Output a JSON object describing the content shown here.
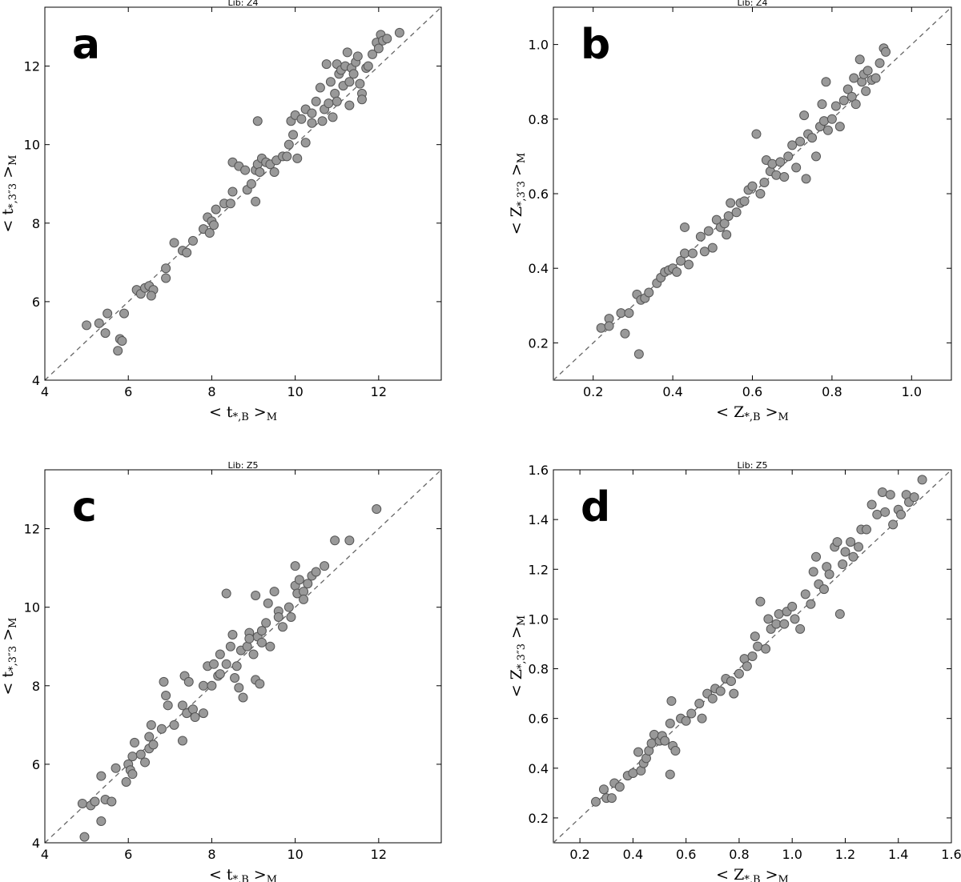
{
  "colors": {
    "marker_fill": "#999999",
    "marker_edge": "#555555",
    "diagonal": "#666666"
  },
  "chart_data": [
    {
      "id": "a",
      "type": "scatter",
      "panel_label": "a",
      "title": "Lib: Z4",
      "xlabel": "< t*,B >M",
      "ylabel": "< t*,3″3 >M",
      "xlim": [
        4,
        13.5
      ],
      "ylim": [
        4,
        13.5
      ],
      "xticks": [
        4,
        6,
        8,
        10,
        12
      ],
      "yticks": [
        4,
        6,
        8,
        10,
        12
      ],
      "tick_format": 0,
      "identity_line": true,
      "points": [
        [
          5.0,
          5.4
        ],
        [
          5.3,
          5.45
        ],
        [
          5.5,
          5.7
        ],
        [
          5.45,
          5.2
        ],
        [
          5.8,
          5.05
        ],
        [
          5.85,
          5.0
        ],
        [
          5.75,
          4.75
        ],
        [
          5.9,
          5.7
        ],
        [
          6.2,
          6.3
        ],
        [
          6.3,
          6.2
        ],
        [
          6.4,
          6.35
        ],
        [
          6.5,
          6.4
        ],
        [
          6.6,
          6.3
        ],
        [
          6.55,
          6.15
        ],
        [
          6.9,
          6.6
        ],
        [
          6.9,
          6.85
        ],
        [
          7.1,
          7.5
        ],
        [
          7.3,
          7.3
        ],
        [
          7.4,
          7.25
        ],
        [
          7.55,
          7.55
        ],
        [
          7.8,
          7.85
        ],
        [
          7.9,
          8.15
        ],
        [
          8.0,
          8.05
        ],
        [
          7.95,
          7.75
        ],
        [
          8.05,
          7.95
        ],
        [
          8.1,
          8.35
        ],
        [
          8.3,
          8.5
        ],
        [
          8.45,
          8.5
        ],
        [
          8.5,
          8.8
        ],
        [
          8.5,
          9.55
        ],
        [
          8.65,
          9.45
        ],
        [
          8.8,
          9.35
        ],
        [
          8.85,
          8.85
        ],
        [
          8.95,
          9.0
        ],
        [
          9.05,
          8.55
        ],
        [
          9.05,
          9.35
        ],
        [
          9.1,
          9.5
        ],
        [
          9.1,
          10.6
        ],
        [
          9.15,
          9.3
        ],
        [
          9.2,
          9.65
        ],
        [
          9.3,
          9.55
        ],
        [
          9.4,
          9.5
        ],
        [
          9.5,
          9.3
        ],
        [
          9.55,
          9.6
        ],
        [
          9.7,
          9.7
        ],
        [
          9.8,
          9.7
        ],
        [
          9.85,
          10.0
        ],
        [
          9.9,
          10.6
        ],
        [
          10.0,
          10.75
        ],
        [
          9.95,
          10.25
        ],
        [
          10.05,
          9.65
        ],
        [
          10.15,
          10.65
        ],
        [
          10.25,
          10.9
        ],
        [
          10.25,
          10.05
        ],
        [
          10.4,
          10.8
        ],
        [
          10.5,
          11.1
        ],
        [
          10.6,
          11.45
        ],
        [
          10.65,
          10.6
        ],
        [
          10.7,
          10.9
        ],
        [
          10.75,
          12.05
        ],
        [
          10.85,
          11.6
        ],
        [
          10.9,
          10.7
        ],
        [
          10.95,
          11.3
        ],
        [
          11.0,
          12.05
        ],
        [
          11.05,
          11.8
        ],
        [
          11.1,
          11.9
        ],
        [
          11.15,
          11.5
        ],
        [
          11.2,
          12.0
        ],
        [
          11.25,
          12.35
        ],
        [
          11.3,
          11.0
        ],
        [
          11.35,
          11.95
        ],
        [
          11.45,
          12.1
        ],
        [
          11.5,
          12.25
        ],
        [
          11.55,
          11.55
        ],
        [
          11.6,
          11.3
        ],
        [
          11.6,
          11.15
        ],
        [
          11.7,
          11.95
        ],
        [
          11.75,
          12.0
        ],
        [
          11.85,
          12.3
        ],
        [
          11.95,
          12.6
        ],
        [
          12.0,
          12.45
        ],
        [
          12.05,
          12.8
        ],
        [
          12.1,
          12.65
        ],
        [
          12.2,
          12.7
        ],
        [
          12.5,
          12.85
        ],
        [
          11.3,
          11.6
        ],
        [
          11.0,
          11.1
        ],
        [
          10.4,
          10.55
        ],
        [
          10.8,
          11.05
        ],
        [
          11.4,
          11.8
        ]
      ]
    },
    {
      "id": "b",
      "type": "scatter",
      "panel_label": "b",
      "title": "Lib: Z4",
      "xlabel": "< Z*,B >M",
      "ylabel": "< Z*,3″3 >M",
      "xlim": [
        0.1,
        1.1
      ],
      "ylim": [
        0.1,
        1.1
      ],
      "xticks": [
        0.2,
        0.4,
        0.6,
        0.8,
        1.0
      ],
      "yticks": [
        0.2,
        0.4,
        0.6,
        0.8,
        1.0
      ],
      "tick_format": 1,
      "identity_line": true,
      "points": [
        [
          0.22,
          0.24
        ],
        [
          0.24,
          0.265
        ],
        [
          0.24,
          0.245
        ],
        [
          0.27,
          0.28
        ],
        [
          0.28,
          0.225
        ],
        [
          0.29,
          0.28
        ],
        [
          0.31,
          0.33
        ],
        [
          0.32,
          0.315
        ],
        [
          0.315,
          0.17
        ],
        [
          0.33,
          0.32
        ],
        [
          0.34,
          0.335
        ],
        [
          0.36,
          0.36
        ],
        [
          0.37,
          0.375
        ],
        [
          0.38,
          0.39
        ],
        [
          0.39,
          0.395
        ],
        [
          0.4,
          0.4
        ],
        [
          0.41,
          0.39
        ],
        [
          0.42,
          0.42
        ],
        [
          0.43,
          0.44
        ],
        [
          0.43,
          0.51
        ],
        [
          0.44,
          0.41
        ],
        [
          0.45,
          0.44
        ],
        [
          0.47,
          0.485
        ],
        [
          0.48,
          0.445
        ],
        [
          0.49,
          0.5
        ],
        [
          0.5,
          0.455
        ],
        [
          0.51,
          0.53
        ],
        [
          0.52,
          0.51
        ],
        [
          0.53,
          0.52
        ],
        [
          0.535,
          0.49
        ],
        [
          0.54,
          0.54
        ],
        [
          0.545,
          0.575
        ],
        [
          0.56,
          0.55
        ],
        [
          0.57,
          0.575
        ],
        [
          0.58,
          0.58
        ],
        [
          0.59,
          0.61
        ],
        [
          0.6,
          0.62
        ],
        [
          0.61,
          0.76
        ],
        [
          0.62,
          0.6
        ],
        [
          0.63,
          0.63
        ],
        [
          0.635,
          0.69
        ],
        [
          0.645,
          0.66
        ],
        [
          0.65,
          0.68
        ],
        [
          0.66,
          0.65
        ],
        [
          0.67,
          0.685
        ],
        [
          0.68,
          0.645
        ],
        [
          0.69,
          0.7
        ],
        [
          0.7,
          0.73
        ],
        [
          0.71,
          0.67
        ],
        [
          0.72,
          0.74
        ],
        [
          0.73,
          0.81
        ],
        [
          0.735,
          0.64
        ],
        [
          0.74,
          0.76
        ],
        [
          0.75,
          0.75
        ],
        [
          0.76,
          0.7
        ],
        [
          0.77,
          0.78
        ],
        [
          0.775,
          0.84
        ],
        [
          0.78,
          0.795
        ],
        [
          0.785,
          0.9
        ],
        [
          0.79,
          0.77
        ],
        [
          0.8,
          0.8
        ],
        [
          0.81,
          0.835
        ],
        [
          0.82,
          0.78
        ],
        [
          0.83,
          0.85
        ],
        [
          0.84,
          0.88
        ],
        [
          0.85,
          0.86
        ],
        [
          0.855,
          0.91
        ],
        [
          0.86,
          0.84
        ],
        [
          0.87,
          0.96
        ],
        [
          0.875,
          0.9
        ],
        [
          0.88,
          0.92
        ],
        [
          0.885,
          0.875
        ],
        [
          0.89,
          0.93
        ],
        [
          0.9,
          0.905
        ],
        [
          0.91,
          0.91
        ],
        [
          0.92,
          0.95
        ],
        [
          0.93,
          0.99
        ],
        [
          0.935,
          0.98
        ]
      ]
    },
    {
      "id": "c",
      "type": "scatter",
      "panel_label": "c",
      "title": "Lib: Z5",
      "xlabel": "< t*,B >M",
      "ylabel": "< t*,3″3 >M",
      "xlim": [
        4,
        13.5
      ],
      "ylim": [
        4,
        13.5
      ],
      "xticks": [
        4,
        6,
        8,
        10,
        12
      ],
      "yticks": [
        4,
        6,
        8,
        10,
        12
      ],
      "tick_format": 0,
      "identity_line": true,
      "points": [
        [
          4.9,
          5.0
        ],
        [
          4.95,
          4.15
        ],
        [
          5.1,
          4.95
        ],
        [
          5.2,
          5.05
        ],
        [
          5.35,
          5.7
        ],
        [
          5.35,
          4.55
        ],
        [
          5.45,
          5.1
        ],
        [
          5.6,
          5.05
        ],
        [
          5.7,
          5.9
        ],
        [
          5.95,
          5.55
        ],
        [
          6.0,
          6.0
        ],
        [
          6.05,
          5.85
        ],
        [
          6.1,
          5.75
        ],
        [
          6.1,
          6.2
        ],
        [
          6.15,
          6.55
        ],
        [
          6.3,
          6.25
        ],
        [
          6.4,
          6.05
        ],
        [
          6.5,
          6.4
        ],
        [
          6.5,
          6.7
        ],
        [
          6.55,
          7.0
        ],
        [
          6.6,
          6.5
        ],
        [
          6.8,
          6.9
        ],
        [
          6.85,
          8.1
        ],
        [
          6.9,
          7.75
        ],
        [
          6.95,
          7.5
        ],
        [
          7.1,
          7.0
        ],
        [
          7.3,
          7.5
        ],
        [
          7.3,
          6.6
        ],
        [
          7.35,
          8.25
        ],
        [
          7.4,
          7.3
        ],
        [
          7.45,
          8.1
        ],
        [
          7.55,
          7.4
        ],
        [
          7.6,
          7.2
        ],
        [
          7.8,
          8.0
        ],
        [
          7.8,
          7.3
        ],
        [
          7.9,
          8.5
        ],
        [
          8.0,
          8.0
        ],
        [
          8.05,
          8.55
        ],
        [
          8.15,
          8.25
        ],
        [
          8.2,
          8.8
        ],
        [
          8.35,
          8.55
        ],
        [
          8.35,
          10.35
        ],
        [
          8.45,
          9.0
        ],
        [
          8.5,
          9.3
        ],
        [
          8.55,
          8.2
        ],
        [
          8.6,
          8.5
        ],
        [
          8.65,
          7.95
        ],
        [
          8.7,
          8.9
        ],
        [
          8.75,
          7.7
        ],
        [
          8.85,
          9.0
        ],
        [
          8.9,
          9.35
        ],
        [
          9.0,
          8.8
        ],
        [
          9.05,
          8.15
        ],
        [
          9.05,
          10.3
        ],
        [
          9.1,
          9.25
        ],
        [
          9.15,
          8.05
        ],
        [
          9.2,
          9.1
        ],
        [
          9.3,
          9.6
        ],
        [
          9.35,
          10.1
        ],
        [
          9.4,
          9.0
        ],
        [
          9.5,
          10.4
        ],
        [
          9.6,
          9.9
        ],
        [
          9.7,
          9.5
        ],
        [
          9.85,
          10.0
        ],
        [
          9.9,
          9.75
        ],
        [
          10.0,
          10.55
        ],
        [
          10.0,
          11.05
        ],
        [
          10.05,
          10.35
        ],
        [
          10.1,
          10.7
        ],
        [
          10.2,
          10.4
        ],
        [
          10.3,
          10.6
        ],
        [
          10.4,
          10.8
        ],
        [
          10.5,
          10.9
        ],
        [
          10.7,
          11.05
        ],
        [
          10.95,
          11.7
        ],
        [
          11.3,
          11.7
        ],
        [
          11.95,
          12.5
        ],
        [
          8.2,
          8.3
        ],
        [
          9.6,
          9.75
        ],
        [
          9.2,
          9.4
        ],
        [
          10.2,
          10.2
        ],
        [
          8.9,
          9.2
        ]
      ]
    },
    {
      "id": "d",
      "type": "scatter",
      "panel_label": "d",
      "title": "Lib: Z5",
      "xlabel": "< Z*,B >M",
      "ylabel": "< Z*,3″3 >M",
      "xlim": [
        0.1,
        1.6
      ],
      "ylim": [
        0.1,
        1.6
      ],
      "xticks": [
        0.2,
        0.4,
        0.6,
        0.8,
        1.0,
        1.2,
        1.4,
        1.6
      ],
      "yticks": [
        0.2,
        0.4,
        0.6,
        0.8,
        1.0,
        1.2,
        1.4,
        1.6
      ],
      "tick_format": 1,
      "identity_line": true,
      "points": [
        [
          0.26,
          0.265
        ],
        [
          0.29,
          0.315
        ],
        [
          0.3,
          0.28
        ],
        [
          0.32,
          0.28
        ],
        [
          0.33,
          0.34
        ],
        [
          0.35,
          0.325
        ],
        [
          0.38,
          0.37
        ],
        [
          0.4,
          0.38
        ],
        [
          0.42,
          0.465
        ],
        [
          0.43,
          0.39
        ],
        [
          0.44,
          0.42
        ],
        [
          0.45,
          0.44
        ],
        [
          0.46,
          0.47
        ],
        [
          0.47,
          0.5
        ],
        [
          0.48,
          0.535
        ],
        [
          0.5,
          0.51
        ],
        [
          0.51,
          0.53
        ],
        [
          0.52,
          0.51
        ],
        [
          0.54,
          0.58
        ],
        [
          0.545,
          0.67
        ],
        [
          0.54,
          0.375
        ],
        [
          0.55,
          0.49
        ],
        [
          0.56,
          0.47
        ],
        [
          0.58,
          0.6
        ],
        [
          0.6,
          0.59
        ],
        [
          0.62,
          0.62
        ],
        [
          0.65,
          0.66
        ],
        [
          0.66,
          0.6
        ],
        [
          0.68,
          0.7
        ],
        [
          0.7,
          0.68
        ],
        [
          0.71,
          0.72
        ],
        [
          0.73,
          0.71
        ],
        [
          0.75,
          0.76
        ],
        [
          0.77,
          0.75
        ],
        [
          0.78,
          0.7
        ],
        [
          0.8,
          0.78
        ],
        [
          0.82,
          0.84
        ],
        [
          0.83,
          0.81
        ],
        [
          0.85,
          0.85
        ],
        [
          0.86,
          0.93
        ],
        [
          0.87,
          0.89
        ],
        [
          0.88,
          1.07
        ],
        [
          0.9,
          0.88
        ],
        [
          0.91,
          1.0
        ],
        [
          0.92,
          0.96
        ],
        [
          0.94,
          0.98
        ],
        [
          0.95,
          1.02
        ],
        [
          0.97,
          0.98
        ],
        [
          0.98,
          1.03
        ],
        [
          1.0,
          1.05
        ],
        [
          1.01,
          1.0
        ],
        [
          1.03,
          0.96
        ],
        [
          1.05,
          1.1
        ],
        [
          1.07,
          1.06
        ],
        [
          1.08,
          1.19
        ],
        [
          1.09,
          1.25
        ],
        [
          1.1,
          1.14
        ],
        [
          1.12,
          1.12
        ],
        [
          1.13,
          1.21
        ],
        [
          1.14,
          1.18
        ],
        [
          1.16,
          1.29
        ],
        [
          1.17,
          1.31
        ],
        [
          1.18,
          1.02
        ],
        [
          1.19,
          1.22
        ],
        [
          1.2,
          1.27
        ],
        [
          1.22,
          1.31
        ],
        [
          1.23,
          1.25
        ],
        [
          1.25,
          1.29
        ],
        [
          1.26,
          1.36
        ],
        [
          1.28,
          1.36
        ],
        [
          1.3,
          1.46
        ],
        [
          1.32,
          1.42
        ],
        [
          1.34,
          1.51
        ],
        [
          1.35,
          1.43
        ],
        [
          1.37,
          1.5
        ],
        [
          1.38,
          1.38
        ],
        [
          1.4,
          1.44
        ],
        [
          1.41,
          1.42
        ],
        [
          1.43,
          1.5
        ],
        [
          1.44,
          1.47
        ],
        [
          1.46,
          1.49
        ],
        [
          1.49,
          1.56
        ]
      ]
    }
  ]
}
